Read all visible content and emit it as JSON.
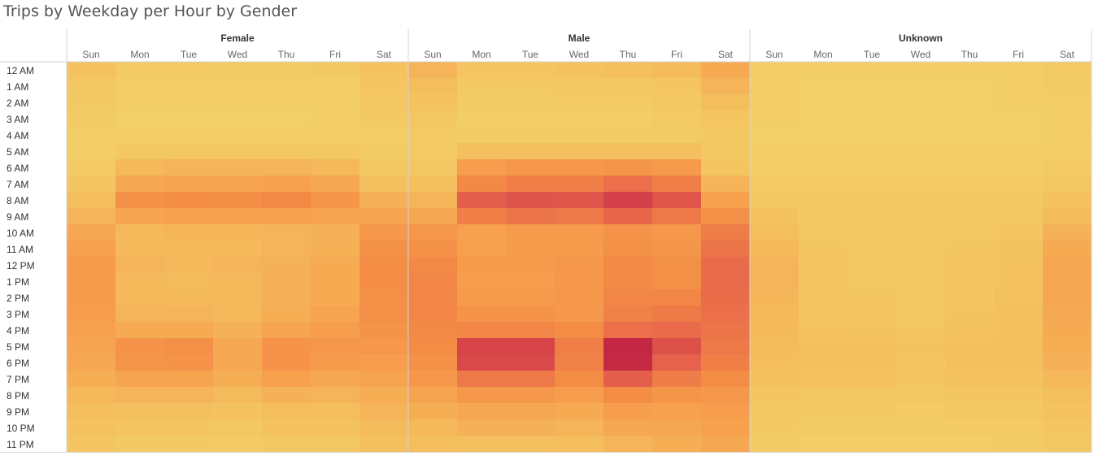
{
  "title": "Trips by Weekday per Hour by Gender",
  "chart_data": {
    "type": "heatmap",
    "title": "Trips by Weekday per Hour by Gender",
    "panels": [
      "Female",
      "Male",
      "Unknown"
    ],
    "days": [
      "Sun",
      "Mon",
      "Tue",
      "Wed",
      "Thu",
      "Fri",
      "Sat"
    ],
    "hours": [
      "12 AM",
      "1 AM",
      "2 AM",
      "3 AM",
      "4 AM",
      "5 AM",
      "6 AM",
      "7 AM",
      "8 AM",
      "9 AM",
      "10 AM",
      "11 AM",
      "12 PM",
      "1 PM",
      "2 PM",
      "3 PM",
      "4 PM",
      "5 PM",
      "6 PM",
      "7 PM",
      "8 PM",
      "9 PM",
      "10 PM",
      "11 PM"
    ],
    "color_scale": [
      "#f3d068",
      "#f4bd5d",
      "#f7a24f",
      "#f28a45",
      "#e8654c",
      "#d5424a",
      "#be1e42"
    ],
    "intensity": {
      "Female": [
        [
          0.12,
          0.05,
          0.05,
          0.04,
          0.04,
          0.06,
          0.12
        ],
        [
          0.08,
          0.02,
          0.02,
          0.02,
          0.02,
          0.03,
          0.1
        ],
        [
          0.06,
          0.02,
          0.02,
          0.02,
          0.02,
          0.02,
          0.08
        ],
        [
          0.04,
          0.01,
          0.01,
          0.01,
          0.01,
          0.02,
          0.06
        ],
        [
          0.02,
          0.02,
          0.02,
          0.02,
          0.02,
          0.02,
          0.03
        ],
        [
          0.03,
          0.08,
          0.08,
          0.08,
          0.08,
          0.07,
          0.04
        ],
        [
          0.05,
          0.2,
          0.22,
          0.22,
          0.22,
          0.2,
          0.07
        ],
        [
          0.09,
          0.3,
          0.32,
          0.32,
          0.34,
          0.3,
          0.14
        ],
        [
          0.16,
          0.45,
          0.48,
          0.47,
          0.5,
          0.42,
          0.24
        ],
        [
          0.22,
          0.32,
          0.34,
          0.34,
          0.35,
          0.32,
          0.32
        ],
        [
          0.3,
          0.2,
          0.21,
          0.21,
          0.22,
          0.24,
          0.4
        ],
        [
          0.34,
          0.2,
          0.2,
          0.2,
          0.22,
          0.25,
          0.45
        ],
        [
          0.38,
          0.22,
          0.2,
          0.22,
          0.24,
          0.28,
          0.48
        ],
        [
          0.38,
          0.2,
          0.18,
          0.2,
          0.24,
          0.28,
          0.48
        ],
        [
          0.38,
          0.2,
          0.19,
          0.2,
          0.24,
          0.28,
          0.46
        ],
        [
          0.36,
          0.22,
          0.22,
          0.2,
          0.26,
          0.32,
          0.46
        ],
        [
          0.34,
          0.28,
          0.28,
          0.24,
          0.32,
          0.36,
          0.43
        ],
        [
          0.32,
          0.44,
          0.46,
          0.3,
          0.44,
          0.4,
          0.4
        ],
        [
          0.3,
          0.42,
          0.44,
          0.3,
          0.44,
          0.38,
          0.36
        ],
        [
          0.26,
          0.32,
          0.32,
          0.26,
          0.34,
          0.3,
          0.32
        ],
        [
          0.2,
          0.22,
          0.22,
          0.18,
          0.24,
          0.22,
          0.26
        ],
        [
          0.16,
          0.14,
          0.14,
          0.12,
          0.16,
          0.16,
          0.22
        ],
        [
          0.12,
          0.1,
          0.1,
          0.08,
          0.12,
          0.12,
          0.18
        ],
        [
          0.1,
          0.06,
          0.06,
          0.05,
          0.07,
          0.08,
          0.14
        ]
      ],
      "Male": [
        [
          0.22,
          0.1,
          0.1,
          0.12,
          0.14,
          0.18,
          0.28
        ],
        [
          0.16,
          0.06,
          0.06,
          0.07,
          0.08,
          0.1,
          0.22
        ],
        [
          0.12,
          0.04,
          0.04,
          0.05,
          0.05,
          0.07,
          0.16
        ],
        [
          0.08,
          0.03,
          0.03,
          0.03,
          0.03,
          0.05,
          0.1
        ],
        [
          0.05,
          0.04,
          0.04,
          0.04,
          0.04,
          0.04,
          0.06
        ],
        [
          0.05,
          0.14,
          0.15,
          0.15,
          0.15,
          0.14,
          0.07
        ],
        [
          0.08,
          0.36,
          0.4,
          0.4,
          0.42,
          0.38,
          0.1
        ],
        [
          0.14,
          0.5,
          0.55,
          0.55,
          0.62,
          0.55,
          0.22
        ],
        [
          0.22,
          0.7,
          0.75,
          0.74,
          0.84,
          0.74,
          0.34
        ],
        [
          0.3,
          0.55,
          0.6,
          0.58,
          0.66,
          0.58,
          0.45
        ],
        [
          0.4,
          0.34,
          0.38,
          0.38,
          0.44,
          0.4,
          0.56
        ],
        [
          0.45,
          0.34,
          0.38,
          0.38,
          0.46,
          0.42,
          0.6
        ],
        [
          0.5,
          0.38,
          0.38,
          0.4,
          0.5,
          0.46,
          0.64
        ],
        [
          0.52,
          0.36,
          0.36,
          0.4,
          0.5,
          0.46,
          0.64
        ],
        [
          0.52,
          0.38,
          0.38,
          0.4,
          0.52,
          0.52,
          0.63
        ],
        [
          0.52,
          0.44,
          0.44,
          0.4,
          0.54,
          0.57,
          0.62
        ],
        [
          0.5,
          0.52,
          0.52,
          0.48,
          0.62,
          0.64,
          0.6
        ],
        [
          0.48,
          0.82,
          0.82,
          0.55,
          0.96,
          0.76,
          0.58
        ],
        [
          0.45,
          0.8,
          0.8,
          0.54,
          0.95,
          0.68,
          0.55
        ],
        [
          0.4,
          0.58,
          0.58,
          0.48,
          0.7,
          0.56,
          0.48
        ],
        [
          0.32,
          0.4,
          0.4,
          0.36,
          0.48,
          0.42,
          0.4
        ],
        [
          0.26,
          0.3,
          0.3,
          0.28,
          0.36,
          0.34,
          0.36
        ],
        [
          0.2,
          0.24,
          0.24,
          0.22,
          0.3,
          0.3,
          0.34
        ],
        [
          0.16,
          0.14,
          0.14,
          0.16,
          0.22,
          0.26,
          0.3
        ]
      ],
      "Unknown": [
        [
          0.02,
          0.02,
          0.02,
          0.02,
          0.02,
          0.03,
          0.05
        ],
        [
          0.02,
          0.01,
          0.01,
          0.01,
          0.01,
          0.02,
          0.04
        ],
        [
          0.02,
          0.01,
          0.01,
          0.01,
          0.01,
          0.02,
          0.03
        ],
        [
          0.02,
          0.01,
          0.01,
          0.01,
          0.01,
          0.01,
          0.03
        ],
        [
          0.01,
          0.01,
          0.01,
          0.01,
          0.01,
          0.01,
          0.02
        ],
        [
          0.02,
          0.02,
          0.02,
          0.02,
          0.02,
          0.02,
          0.03
        ],
        [
          0.03,
          0.03,
          0.03,
          0.03,
          0.03,
          0.03,
          0.05
        ],
        [
          0.05,
          0.05,
          0.05,
          0.05,
          0.05,
          0.05,
          0.08
        ],
        [
          0.08,
          0.06,
          0.06,
          0.06,
          0.06,
          0.06,
          0.12
        ],
        [
          0.12,
          0.06,
          0.06,
          0.06,
          0.06,
          0.07,
          0.18
        ],
        [
          0.16,
          0.08,
          0.07,
          0.07,
          0.08,
          0.1,
          0.24
        ],
        [
          0.2,
          0.09,
          0.08,
          0.08,
          0.09,
          0.11,
          0.28
        ],
        [
          0.22,
          0.1,
          0.08,
          0.08,
          0.1,
          0.12,
          0.3
        ],
        [
          0.22,
          0.1,
          0.08,
          0.08,
          0.1,
          0.12,
          0.3
        ],
        [
          0.21,
          0.1,
          0.09,
          0.08,
          0.1,
          0.13,
          0.3
        ],
        [
          0.2,
          0.1,
          0.1,
          0.08,
          0.11,
          0.14,
          0.29
        ],
        [
          0.19,
          0.12,
          0.11,
          0.09,
          0.12,
          0.14,
          0.28
        ],
        [
          0.18,
          0.15,
          0.14,
          0.11,
          0.15,
          0.15,
          0.26
        ],
        [
          0.16,
          0.14,
          0.14,
          0.1,
          0.14,
          0.14,
          0.24
        ],
        [
          0.14,
          0.12,
          0.12,
          0.1,
          0.12,
          0.12,
          0.2
        ],
        [
          0.1,
          0.08,
          0.08,
          0.07,
          0.09,
          0.09,
          0.15
        ],
        [
          0.08,
          0.06,
          0.06,
          0.05,
          0.07,
          0.07,
          0.12
        ],
        [
          0.06,
          0.04,
          0.04,
          0.04,
          0.05,
          0.05,
          0.1
        ],
        [
          0.04,
          0.03,
          0.03,
          0.03,
          0.03,
          0.04,
          0.07
        ]
      ]
    }
  }
}
